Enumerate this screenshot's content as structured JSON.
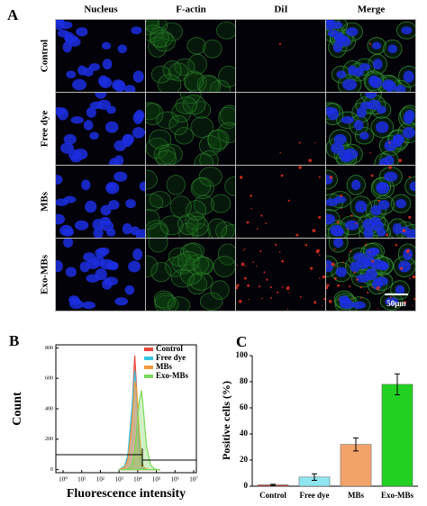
{
  "panel_a": {
    "label": "A",
    "columns": [
      "Nucleus",
      "F-actin",
      "DiI",
      "Merge"
    ],
    "rows": [
      "Control",
      "Free dye",
      "MBs",
      "Exo-MBs"
    ],
    "scale_bar": "50μm"
  },
  "chart_data": [
    {
      "type": "area",
      "panel_label": "B",
      "xlabel": "Fluorescence intensity",
      "ylabel": "Count",
      "log_x": true,
      "x": [
        1000,
        2000,
        3000,
        5000,
        7000,
        9000,
        12000,
        16000,
        20000,
        30000,
        50000,
        80000,
        150000
      ],
      "series": [
        {
          "name": "Control",
          "color": "#e8463c",
          "values": [
            0,
            20,
            90,
            400,
            750,
            500,
            150,
            30,
            10,
            0,
            0,
            0,
            0
          ]
        },
        {
          "name": "Free dye",
          "color": "#38c6e0",
          "values": [
            0,
            25,
            100,
            420,
            650,
            480,
            160,
            40,
            10,
            0,
            0,
            0,
            0
          ]
        },
        {
          "name": "MBs",
          "color": "#f39a3c",
          "values": [
            0,
            15,
            60,
            300,
            580,
            520,
            250,
            80,
            20,
            5,
            0,
            0,
            0
          ]
        },
        {
          "name": "Exo-MBs",
          "color": "#7ad85a",
          "values": [
            0,
            0,
            5,
            30,
            120,
            260,
            450,
            520,
            400,
            150,
            30,
            5,
            0
          ]
        }
      ],
      "xlim": [
        1,
        10000000
      ],
      "xticks": [
        {
          "value": 1,
          "label": "10⁰"
        },
        {
          "value": 10,
          "label": "10¹"
        },
        {
          "value": 100,
          "label": "10²"
        },
        {
          "value": 1000,
          "label": "10³"
        },
        {
          "value": 10000,
          "label": "10⁴"
        },
        {
          "value": 100000,
          "label": "10⁵"
        },
        {
          "value": 1000000,
          "label": "10⁶"
        },
        {
          "value": 10000000,
          "label": "10⁷"
        }
      ],
      "ylim": [
        -20,
        820
      ],
      "yticks": [
        0,
        200,
        400,
        600,
        800
      ],
      "legend": "upper right"
    },
    {
      "type": "bar",
      "panel_label": "C",
      "ylabel": "Positive cells (%)",
      "categories": [
        "Control",
        "Free dye",
        "MBs",
        "Exo-MBs"
      ],
      "values": [
        1,
        7,
        32,
        78
      ],
      "errors": [
        0.5,
        2.5,
        5,
        8
      ],
      "colors": [
        "#c0392b",
        "#8ee6f0",
        "#f2a36a",
        "#22d022"
      ],
      "ylim": [
        0,
        100
      ],
      "yticks": [
        0,
        20,
        40,
        60,
        80,
        100
      ]
    }
  ]
}
